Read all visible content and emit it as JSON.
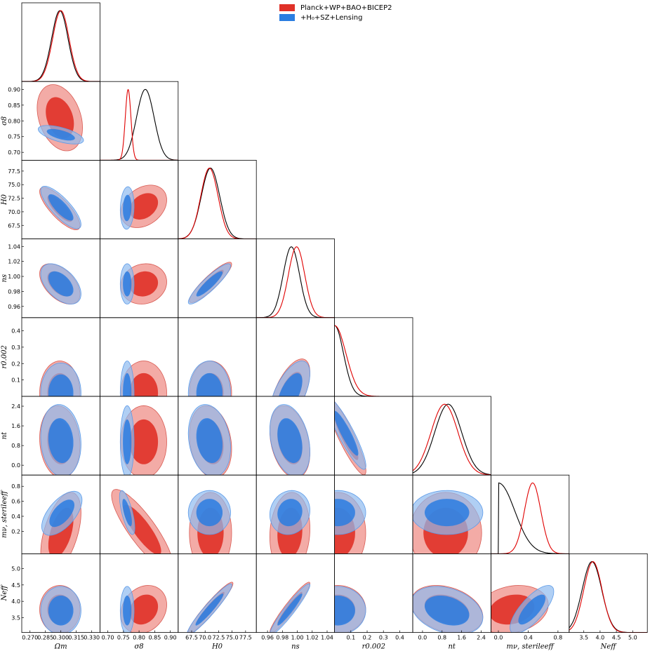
{
  "legend": [
    {
      "label": "Planck+WP+BAO+BICEP2",
      "color": "#e03128"
    },
    {
      "label": "+H₀+SZ+Lensing",
      "color": "#2a7de1"
    }
  ],
  "colors": {
    "red_fill_outer": "#ef8f88",
    "red_fill_inner": "#e03128",
    "blue_fill_outer": "#8fbaf0",
    "blue_fill_inner": "#2a7de1",
    "red_line": "#e00000",
    "black_line": "#000000"
  },
  "chart_data": {
    "type": "triangle-corner",
    "parameters": [
      {
        "name": "Omega_m",
        "label": "Ωm",
        "ticks": [
          "0.270",
          "0.285",
          "0.300",
          "0.315",
          "0.330"
        ],
        "range": [
          0.262,
          0.338
        ]
      },
      {
        "name": "sigma_8",
        "label": "σ8",
        "ticks": [
          "0.70",
          "0.75",
          "0.80",
          "0.85",
          "0.90"
        ],
        "range": [
          0.675,
          0.925
        ]
      },
      {
        "name": "H0",
        "label": "H0",
        "ticks": [
          "67.5",
          "70.0",
          "72.5",
          "75.0",
          "77.5"
        ],
        "range": [
          65.0,
          79.5
        ]
      },
      {
        "name": "n_s",
        "label": "ns",
        "ticks": [
          "0.96",
          "0.98",
          "1.00",
          "1.02",
          "1.04"
        ],
        "range": [
          0.945,
          1.05
        ]
      },
      {
        "name": "r_0.002",
        "label": "r0.002",
        "ticks": [
          "0.1",
          "0.2",
          "0.3",
          "0.4"
        ],
        "range": [
          0.0,
          0.48
        ]
      },
      {
        "name": "n_t",
        "label": "nt",
        "ticks": [
          "0.0",
          "0.8",
          "1.6",
          "2.4"
        ],
        "range": [
          -0.4,
          2.8
        ]
      },
      {
        "name": "m_nu_sterile_eff",
        "label": "mν, sterileeff",
        "ticks": [
          "0.0",
          "0.4",
          "0.8"
        ],
        "range": [
          -0.1,
          0.95
        ]
      },
      {
        "name": "N_eff",
        "label": "Neff",
        "ticks": [
          "3.5",
          "4.0",
          "4.5",
          "5.0"
        ],
        "range": [
          3.05,
          5.45
        ]
      }
    ],
    "y_ticks": {
      "sigma_8": [
        "0.70",
        "0.75",
        "0.80",
        "0.85",
        "0.90"
      ],
      "H0": [
        "67.5",
        "70.0",
        "72.5",
        "75.0",
        "77.5"
      ],
      "n_s": [
        "0.96",
        "0.98",
        "1.00",
        "1.02",
        "1.04"
      ],
      "r_0.002": [
        "0.1",
        "0.2",
        "0.3",
        "0.4"
      ],
      "n_t": [
        "0.0",
        "0.8",
        "1.6",
        "2.4"
      ],
      "m_nu_sterile_eff": [
        "0.2",
        "0.4",
        "0.6",
        "0.8"
      ],
      "N_eff": [
        "3.5",
        "4.0",
        "4.5",
        "5.0"
      ]
    },
    "diagonal_1d": [
      {
        "param": "Omega_m",
        "black": {
          "mean": 0.299,
          "sd": 0.008
        },
        "red": {
          "mean": 0.3,
          "sd": 0.008
        }
      },
      {
        "param": "sigma_8",
        "black": {
          "mean": 0.82,
          "sd": 0.028
        },
        "red": {
          "mean": 0.765,
          "sd": 0.009
        }
      },
      {
        "param": "H0",
        "black": {
          "mean": 71.0,
          "sd": 1.7
        },
        "red": {
          "mean": 70.8,
          "sd": 1.6
        }
      },
      {
        "param": "n_s",
        "black": {
          "mean": 0.992,
          "sd": 0.011
        },
        "red": {
          "mean": 0.999,
          "sd": 0.011
        }
      },
      {
        "param": "r_0.002",
        "black": {
          "type": "halfnormal",
          "scale": 0.055
        },
        "red": {
          "type": "halfnormal",
          "scale": 0.07
        }
      },
      {
        "param": "n_t",
        "black": {
          "mean": 1.05,
          "sd": 0.55
        },
        "red": {
          "mean": 0.9,
          "sd": 0.55
        }
      },
      {
        "param": "m_nu_sterile_eff",
        "black": {
          "type": "halfnormal",
          "scale": 0.22
        },
        "red": {
          "mean": 0.46,
          "sd": 0.11
        }
      },
      {
        "param": "N_eff",
        "black": {
          "mean": 3.75,
          "sd": 0.3
        },
        "red": {
          "mean": 3.78,
          "sd": 0.28
        }
      }
    ],
    "contours_2d": [
      {
        "x": "Omega_m",
        "y": "sigma_8",
        "red": {
          "mean": [
            0.299,
            0.81
          ],
          "sd": [
            0.009,
            0.043
          ],
          "rho": -0.3
        },
        "blue": {
          "mean": [
            0.3,
            0.756
          ],
          "sd": [
            0.009,
            0.012
          ],
          "rho": -0.6
        }
      },
      {
        "x": "Omega_m",
        "y": "H0",
        "red": {
          "mean": [
            0.299,
            70.6
          ],
          "sd": [
            0.008,
            1.6
          ],
          "rho": -0.8
        },
        "blue": {
          "mean": [
            0.3,
            70.8
          ],
          "sd": [
            0.008,
            1.6
          ],
          "rho": -0.8
        }
      },
      {
        "x": "sigma_8",
        "y": "H0",
        "red": {
          "mean": [
            0.815,
            71.0
          ],
          "sd": [
            0.03,
            1.6
          ],
          "rho": 0.3
        },
        "blue": {
          "mean": [
            0.762,
            70.7
          ],
          "sd": [
            0.009,
            1.6
          ],
          "rho": 0.1
        }
      },
      {
        "x": "Omega_m",
        "y": "n_s",
        "red": {
          "mean": [
            0.299,
            0.99
          ],
          "sd": [
            0.008,
            0.011
          ],
          "rho": -0.5
        },
        "blue": {
          "mean": [
            0.3,
            0.99
          ],
          "sd": [
            0.008,
            0.011
          ],
          "rho": -0.5
        }
      },
      {
        "x": "sigma_8",
        "y": "n_s",
        "red": {
          "mean": [
            0.815,
            0.99
          ],
          "sd": [
            0.03,
            0.011
          ],
          "rho": 0.1
        },
        "blue": {
          "mean": [
            0.762,
            0.99
          ],
          "sd": [
            0.009,
            0.011
          ],
          "rho": 0.0
        }
      },
      {
        "x": "H0",
        "y": "n_s",
        "red": {
          "mean": [
            71.0,
            0.992
          ],
          "sd": [
            1.6,
            0.011
          ],
          "rho": 0.9
        },
        "blue": {
          "mean": [
            70.8,
            0.99
          ],
          "sd": [
            1.6,
            0.011
          ],
          "rho": 0.9
        }
      },
      {
        "x": "Omega_m",
        "y": "r_0.002",
        "red": {
          "mean": [
            0.299,
            0.02
          ],
          "sd": [
            0.008,
            0.08
          ],
          "rho": 0.0
        },
        "blue": {
          "mean": [
            0.3,
            0.02
          ],
          "sd": [
            0.008,
            0.075
          ],
          "rho": 0.0
        }
      },
      {
        "x": "sigma_8",
        "y": "r_0.002",
        "red": {
          "mean": [
            0.815,
            0.02
          ],
          "sd": [
            0.03,
            0.08
          ],
          "rho": 0.0
        },
        "blue": {
          "mean": [
            0.762,
            0.02
          ],
          "sd": [
            0.009,
            0.08
          ],
          "rho": 0.0
        }
      },
      {
        "x": "H0",
        "y": "r_0.002",
        "red": {
          "mean": [
            71.0,
            0.02
          ],
          "sd": [
            1.6,
            0.08
          ],
          "rho": 0.0
        },
        "blue": {
          "mean": [
            70.8,
            0.02
          ],
          "sd": [
            1.6,
            0.08
          ],
          "rho": 0.0
        }
      },
      {
        "x": "n_s",
        "y": "r_0.002",
        "red": {
          "mean": [
            0.99,
            0.02
          ],
          "sd": [
            0.011,
            0.085
          ],
          "rho": 0.6
        },
        "blue": {
          "mean": [
            0.99,
            0.02
          ],
          "sd": [
            0.011,
            0.08
          ],
          "rho": 0.6
        }
      },
      {
        "x": "Omega_m",
        "y": "n_t",
        "red": {
          "mean": [
            0.299,
            0.95
          ],
          "sd": [
            0.008,
            0.6
          ],
          "rho": -0.1
        },
        "blue": {
          "mean": [
            0.3,
            1.0
          ],
          "sd": [
            0.008,
            0.6
          ],
          "rho": -0.1
        }
      },
      {
        "x": "sigma_8",
        "y": "n_t",
        "red": {
          "mean": [
            0.815,
            0.95
          ],
          "sd": [
            0.03,
            0.6
          ],
          "rho": 0.0
        },
        "blue": {
          "mean": [
            0.762,
            0.95
          ],
          "sd": [
            0.009,
            0.6
          ],
          "rho": 0.0
        }
      },
      {
        "x": "H0",
        "y": "n_t",
        "red": {
          "mean": [
            71.0,
            0.95
          ],
          "sd": [
            1.6,
            0.6
          ],
          "rho": -0.2
        },
        "blue": {
          "mean": [
            70.8,
            1.0
          ],
          "sd": [
            1.6,
            0.6
          ],
          "rho": -0.2
        }
      },
      {
        "x": "n_s",
        "y": "n_t",
        "red": {
          "mean": [
            0.99,
            0.95
          ],
          "sd": [
            0.011,
            0.6
          ],
          "rho": -0.3
        },
        "blue": {
          "mean": [
            0.99,
            1.0
          ],
          "sd": [
            0.011,
            0.6
          ],
          "rho": -0.3
        }
      },
      {
        "x": "r_0.002",
        "y": "n_t",
        "red": {
          "mean": [
            0.07,
            1.2
          ],
          "sd": [
            0.05,
            0.65
          ],
          "rho": -0.9
        },
        "blue": {
          "mean": [
            0.07,
            1.3
          ],
          "sd": [
            0.05,
            0.6
          ],
          "rho": -0.9
        }
      },
      {
        "x": "Omega_m",
        "y": "m_nu_sterile_eff",
        "red": {
          "mean": [
            0.3,
            0.18
          ],
          "sd": [
            0.008,
            0.22
          ],
          "rho": 0.5
        },
        "blue": {
          "mean": [
            0.301,
            0.44
          ],
          "sd": [
            0.008,
            0.12
          ],
          "rho": 0.6
        }
      },
      {
        "x": "sigma_8",
        "y": "m_nu_sterile_eff",
        "red": {
          "mean": [
            0.81,
            0.22
          ],
          "sd": [
            0.04,
            0.22
          ],
          "rho": -0.85
        },
        "blue": {
          "mean": [
            0.762,
            0.45
          ],
          "sd": [
            0.01,
            0.12
          ],
          "rho": -0.7
        }
      },
      {
        "x": "H0",
        "y": "m_nu_sterile_eff",
        "red": {
          "mean": [
            71.0,
            0.18
          ],
          "sd": [
            1.6,
            0.22
          ],
          "rho": 0.0
        },
        "blue": {
          "mean": [
            70.8,
            0.45
          ],
          "sd": [
            1.6,
            0.12
          ],
          "rho": 0.0
        }
      },
      {
        "x": "n_s",
        "y": "m_nu_sterile_eff",
        "red": {
          "mean": [
            0.99,
            0.18
          ],
          "sd": [
            0.011,
            0.22
          ],
          "rho": 0.1
        },
        "blue": {
          "mean": [
            0.99,
            0.45
          ],
          "sd": [
            0.011,
            0.12
          ],
          "rho": 0.1
        }
      },
      {
        "x": "r_0.002",
        "y": "m_nu_sterile_eff",
        "red": {
          "mean": [
            0.02,
            0.18
          ],
          "sd": [
            0.07,
            0.22
          ],
          "rho": 0.0
        },
        "blue": {
          "mean": [
            0.02,
            0.45
          ],
          "sd": [
            0.07,
            0.12
          ],
          "rho": 0.0
        }
      },
      {
        "x": "n_t",
        "y": "m_nu_sterile_eff",
        "red": {
          "mean": [
            0.95,
            0.18
          ],
          "sd": [
            0.6,
            0.22
          ],
          "rho": 0.0
        },
        "blue": {
          "mean": [
            1.0,
            0.45
          ],
          "sd": [
            0.6,
            0.12
          ],
          "rho": 0.0
        }
      },
      {
        "x": "Omega_m",
        "y": "N_eff",
        "red": {
          "mean": [
            0.299,
            3.75
          ],
          "sd": [
            0.008,
            0.3
          ],
          "rho": 0.0
        },
        "blue": {
          "mean": [
            0.3,
            3.72
          ],
          "sd": [
            0.008,
            0.3
          ],
          "rho": 0.0
        }
      },
      {
        "x": "sigma_8",
        "y": "N_eff",
        "red": {
          "mean": [
            0.815,
            3.75
          ],
          "sd": [
            0.03,
            0.3
          ],
          "rho": 0.2
        },
        "blue": {
          "mean": [
            0.762,
            3.72
          ],
          "sd": [
            0.009,
            0.3
          ],
          "rho": 0.0
        }
      },
      {
        "x": "H0",
        "y": "N_eff",
        "red": {
          "mean": [
            71.0,
            3.8
          ],
          "sd": [
            1.7,
            0.32
          ],
          "rho": 0.95
        },
        "blue": {
          "mean": [
            70.8,
            3.75
          ],
          "sd": [
            1.7,
            0.32
          ],
          "rho": 0.95
        }
      },
      {
        "x": "n_s",
        "y": "N_eff",
        "red": {
          "mean": [
            0.99,
            3.8
          ],
          "sd": [
            0.011,
            0.32
          ],
          "rho": 0.95
        },
        "blue": {
          "mean": [
            0.99,
            3.75
          ],
          "sd": [
            0.011,
            0.32
          ],
          "rho": 0.95
        }
      },
      {
        "x": "r_0.002",
        "y": "N_eff",
        "red": {
          "mean": [
            0.02,
            3.75
          ],
          "sd": [
            0.07,
            0.3
          ],
          "rho": 0.0
        },
        "blue": {
          "mean": [
            0.02,
            3.72
          ],
          "sd": [
            0.07,
            0.3
          ],
          "rho": 0.0
        }
      },
      {
        "x": "n_t",
        "y": "N_eff",
        "red": {
          "mean": [
            1.0,
            3.75
          ],
          "sd": [
            0.6,
            0.3
          ],
          "rho": -0.3
        },
        "blue": {
          "mean": [
            1.0,
            3.72
          ],
          "sd": [
            0.6,
            0.3
          ],
          "rho": -0.3
        }
      },
      {
        "x": "m_nu_sterile_eff",
        "y": "N_eff",
        "red": {
          "mean": [
            0.18,
            3.75
          ],
          "sd": [
            0.2,
            0.3
          ],
          "rho": 0.2
        },
        "blue": {
          "mean": [
            0.45,
            3.75
          ],
          "sd": [
            0.12,
            0.3
          ],
          "rho": 0.75
        }
      }
    ]
  }
}
